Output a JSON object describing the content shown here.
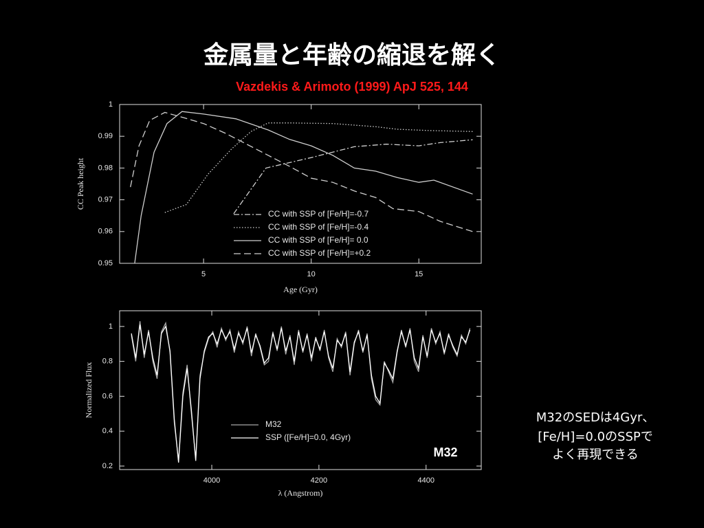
{
  "slide": {
    "title": "金属量と年齢の縮退を解く",
    "subtitle": "Vazdekis & Arimoto (1999) ApJ 525, 144",
    "note": [
      "M32のSEDは4Gyr、",
      "[Fe/H]=0.0のSSPで",
      "よく再現できる"
    ]
  },
  "chart_data": [
    {
      "type": "line",
      "xlabel": "Age (Gyr)",
      "ylabel": "CC Peak height",
      "xlim": [
        1.1,
        17.9
      ],
      "xticks": [
        5,
        10,
        15
      ],
      "ylim": [
        0.95,
        1
      ],
      "yticks": [
        0.95,
        0.96,
        0.97,
        0.98,
        0.99,
        1
      ],
      "series": [
        {
          "name": "CC with SSP of [Fe/H]=-0.7",
          "color": "#d0d0d0",
          "style": "dashdot",
          "x": [
            6.4,
            7.9,
            10,
            12,
            13.5,
            15,
            16,
            17.5
          ],
          "values": [
            0.9656,
            0.98,
            0.9833,
            0.9867,
            0.9875,
            0.987,
            0.988,
            0.9889
          ]
        },
        {
          "name": "CC with SSP of [Fe/H]=-0.4",
          "color": "#d0d0d0",
          "style": "dotted",
          "x": [
            3.2,
            4.2,
            5.2,
            6.3,
            7.2,
            8,
            9,
            11,
            13,
            14,
            15.5,
            17.5
          ],
          "values": [
            0.966,
            0.9685,
            0.978,
            0.986,
            0.9915,
            0.9942,
            0.9942,
            0.994,
            0.993,
            0.9922,
            0.9918,
            0.9915
          ]
        },
        {
          "name": "CC with SSP of [Fe/H]= 0.0",
          "color": "#d0d0d0",
          "style": "solid",
          "x": [
            1.8,
            2.1,
            2.7,
            3.3,
            4,
            5,
            6.5,
            8,
            9,
            10,
            11,
            12,
            13,
            14,
            15,
            15.7,
            17.5
          ],
          "values": [
            0.95,
            0.965,
            0.985,
            0.994,
            0.9978,
            0.997,
            0.9955,
            0.992,
            0.989,
            0.987,
            0.984,
            0.98,
            0.979,
            0.977,
            0.9755,
            0.9762,
            0.9718
          ]
        },
        {
          "name": "CC with SSP of [Fe/H]=+0.2",
          "color": "#d0d0d0",
          "style": "dashed",
          "x": [
            1.6,
            2,
            2.5,
            3.2,
            4,
            5,
            6,
            7,
            8,
            9,
            10,
            11,
            12,
            13,
            13.8,
            15,
            16,
            17.5
          ],
          "values": [
            0.974,
            0.987,
            0.995,
            0.9975,
            0.996,
            0.994,
            0.991,
            0.9875,
            0.984,
            0.9805,
            0.9768,
            0.9755,
            0.9728,
            0.9707,
            0.9672,
            0.9663,
            0.9632,
            0.96
          ]
        }
      ]
    },
    {
      "type": "line",
      "xlabel": "λ (Angstrom)",
      "ylabel": "Normalized Flux",
      "annotation": "M32",
      "xlim": [
        3828,
        4503
      ],
      "xticks": [
        4000,
        4200,
        4400
      ],
      "ylim": [
        0.18,
        1.09
      ],
      "yticks": [
        0.2,
        0.4,
        0.6,
        0.8,
        1
      ],
      "x": [
        3850,
        3858,
        3866,
        3874,
        3882,
        3890,
        3898,
        3906,
        3914,
        3922,
        3930,
        3938,
        3946,
        3954,
        3962,
        3970,
        3978,
        3986,
        3994,
        4002,
        4010,
        4018,
        4026,
        4034,
        4042,
        4050,
        4058,
        4066,
        4074,
        4082,
        4090,
        4098,
        4106,
        4114,
        4122,
        4130,
        4138,
        4146,
        4154,
        4162,
        4170,
        4178,
        4186,
        4194,
        4202,
        4210,
        4218,
        4226,
        4234,
        4242,
        4250,
        4258,
        4266,
        4274,
        4282,
        4290,
        4298,
        4306,
        4314,
        4322,
        4330,
        4338,
        4346,
        4354,
        4362,
        4370,
        4378,
        4386,
        4394,
        4402,
        4410,
        4418,
        4426,
        4434,
        4442,
        4450,
        4458,
        4466,
        4474,
        4482
      ],
      "series": [
        {
          "name": "M32",
          "color": "#a8a8a8",
          "style": "solid",
          "values": [
            0.95,
            0.8,
            1.03,
            0.82,
            0.98,
            0.8,
            0.7,
            0.97,
            1.02,
            0.85,
            0.45,
            0.23,
            0.62,
            0.78,
            0.5,
            0.24,
            0.72,
            0.85,
            0.93,
            0.97,
            0.88,
            0.99,
            0.92,
            0.98,
            0.85,
            0.97,
            0.9,
            1,
            0.83,
            0.96,
            0.88,
            0.78,
            0.8,
            0.97,
            0.86,
            1,
            0.84,
            0.95,
            0.78,
            0.98,
            0.85,
            0.96,
            0.8,
            0.94,
            0.86,
            0.98,
            0.82,
            0.74,
            0.93,
            0.88,
            0.97,
            0.72,
            0.9,
            0.98,
            0.85,
            0.96,
            0.7,
            0.58,
            0.55,
            0.8,
            0.74,
            0.68,
            0.85,
            0.98,
            0.88,
            0.99,
            0.8,
            0.74,
            0.95,
            0.82,
            0.99,
            0.9,
            0.97,
            0.84,
            0.96,
            0.88,
            0.83,
            0.95,
            0.9,
            0.99
          ]
        },
        {
          "name": "SSP ([Fe/H]=0.0, 4Gyr)",
          "color": "#ffffff",
          "style": "solid",
          "values": [
            0.96,
            0.82,
            1.01,
            0.84,
            0.97,
            0.82,
            0.72,
            0.96,
            1,
            0.86,
            0.47,
            0.22,
            0.6,
            0.76,
            0.52,
            0.23,
            0.7,
            0.86,
            0.94,
            0.96,
            0.9,
            0.98,
            0.93,
            0.97,
            0.87,
            0.96,
            0.91,
            0.99,
            0.85,
            0.95,
            0.89,
            0.79,
            0.82,
            0.96,
            0.87,
            0.99,
            0.86,
            0.94,
            0.8,
            0.97,
            0.86,
            0.95,
            0.82,
            0.93,
            0.87,
            0.97,
            0.83,
            0.76,
            0.92,
            0.89,
            0.96,
            0.74,
            0.91,
            0.97,
            0.86,
            0.95,
            0.72,
            0.6,
            0.56,
            0.79,
            0.75,
            0.7,
            0.86,
            0.97,
            0.89,
            0.98,
            0.82,
            0.76,
            0.94,
            0.83,
            0.98,
            0.91,
            0.96,
            0.85,
            0.95,
            0.89,
            0.84,
            0.94,
            0.91,
            0.98
          ]
        }
      ]
    }
  ]
}
